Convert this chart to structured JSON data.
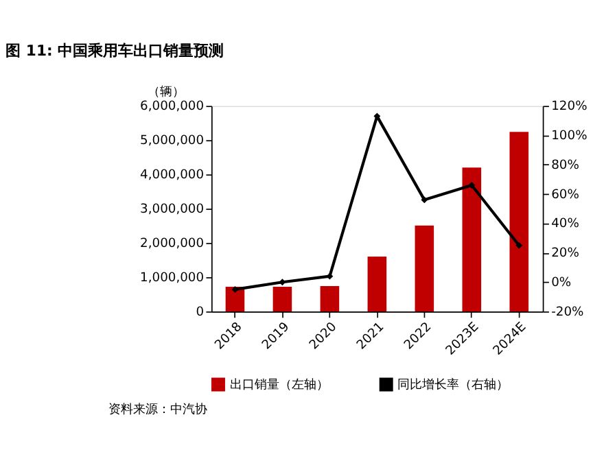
{
  "chart_data": {
    "type": "bar",
    "title": "图 11: 中国乘用车出口销量预测",
    "ylabel": "（辆）",
    "categories": [
      "2018",
      "2019",
      "2020",
      "2021",
      "2022",
      "2023E",
      "2024E"
    ],
    "ylim": [
      0,
      6000000
    ],
    "yticks": [
      0,
      {
        "value": 1000000,
        "label": "1,000,000"
      },
      {
        "value": 2000000,
        "label": "2,000,000"
      },
      {
        "value": 3000000,
        "label": "3,000,000"
      },
      {
        "value": 4000000,
        "label": "4,000,000"
      },
      {
        "value": 5000000,
        "label": "5,000,000"
      },
      {
        "value": 6000000,
        "label": "6,000,000"
      }
    ],
    "y2lim": [
      -20,
      120
    ],
    "y2ticks": [
      {
        "value": -20,
        "label": "-20%"
      },
      {
        "value": 0,
        "label": "0%"
      },
      {
        "value": 20,
        "label": "20%"
      },
      {
        "value": 40,
        "label": "40%"
      },
      {
        "value": 60,
        "label": "60%"
      },
      {
        "value": 80,
        "label": "80%"
      },
      {
        "value": 100,
        "label": "100%"
      },
      {
        "value": 120,
        "label": "120%"
      }
    ],
    "legend": "bottom",
    "grid": false,
    "marker": "diamond",
    "annotations": [
      "资料来源：中汽协"
    ],
    "series": [
      {
        "name": "出口销量（左轴）",
        "color": "#c00000",
        "values": [
          720000,
          720000,
          740000,
          1600000,
          2510000,
          4200000,
          5240000
        ]
      },
      {
        "name": "同比增长率（右轴）",
        "type": "line",
        "axis": "y2",
        "color": "#000000",
        "values": [
          -5,
          0,
          4,
          113,
          56,
          66,
          25
        ]
      }
    ]
  }
}
